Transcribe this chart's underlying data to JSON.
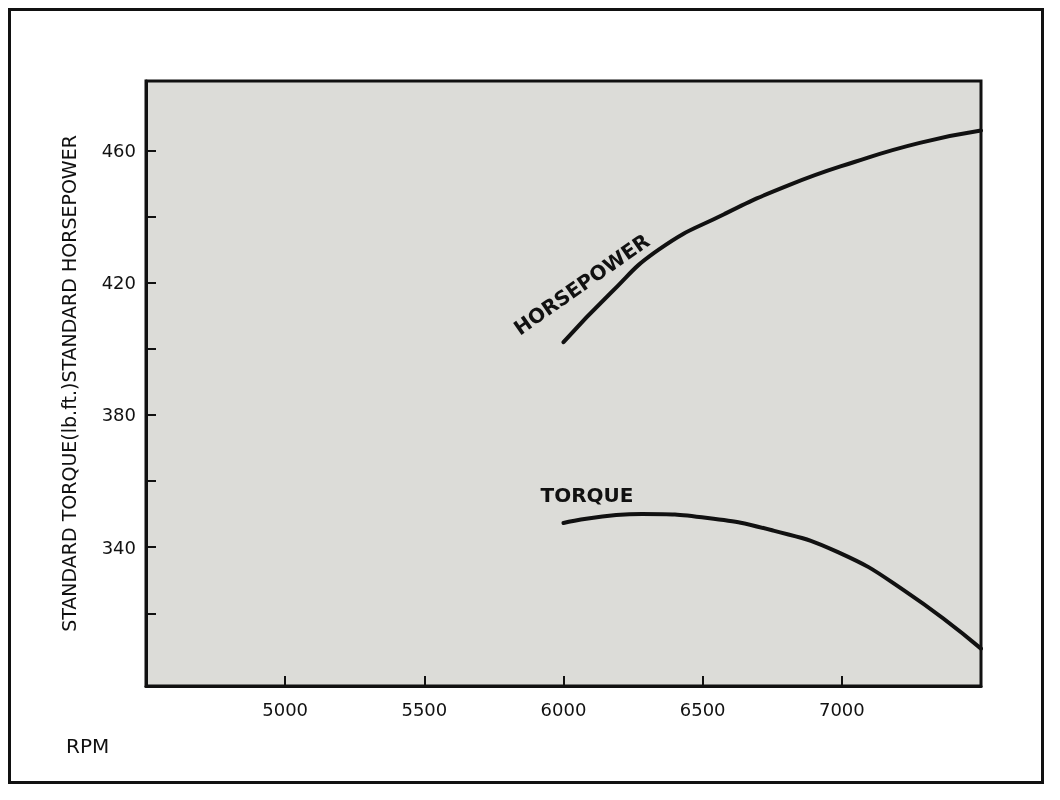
{
  "chart_data": {
    "type": "line",
    "xlabel": "RPM",
    "ylabel": "STANDARD TORQUE(lb.ft.)STANDARD HORSEPOWER",
    "xlim": [
      4500,
      7500
    ],
    "ylim": [
      298,
      481
    ],
    "xticks": [
      5000,
      5500,
      6000,
      6500,
      7000
    ],
    "yticks": [
      {
        "value": 320,
        "label": null
      },
      340,
      {
        "value": 360,
        "label": null
      },
      380,
      {
        "value": 400,
        "label": null
      },
      420,
      {
        "value": 440,
        "label": null
      },
      460
    ],
    "grid": false,
    "legend": false,
    "marker": "none",
    "line_style": "solid",
    "series": [
      {
        "name": "HORSEPOWER",
        "color": "#111111",
        "x": [
          6000,
          6165,
          6342,
          6577,
          6810,
          7045,
          7280,
          7500
        ],
        "values": [
          402,
          416.5,
          430,
          440.7,
          449.5,
          456.5,
          462.3,
          466
        ]
      },
      {
        "name": "TORQUE",
        "color": "#111111",
        "x": [
          6000,
          6282,
          6518,
          6754,
          6986,
          7222,
          7500
        ],
        "values": [
          347.3,
          350,
          348.8,
          345,
          338.5,
          327,
          309.3
        ]
      }
    ]
  }
}
